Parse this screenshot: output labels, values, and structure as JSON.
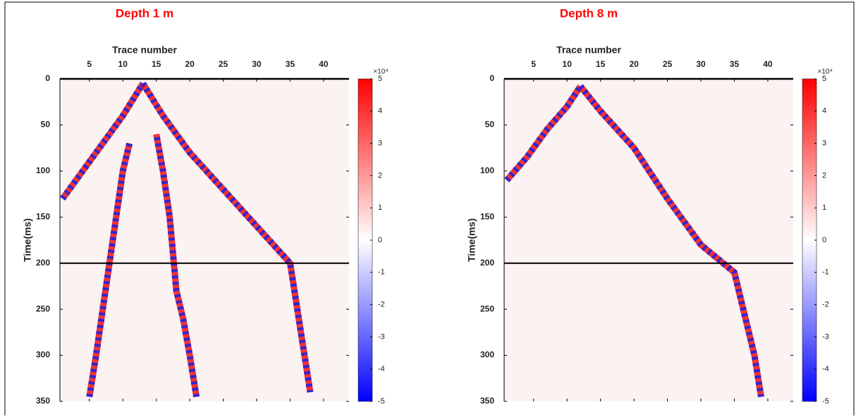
{
  "chart_data": [
    {
      "type": "heatmap",
      "title": "Depth 1 m",
      "xlabel": "Trace number",
      "ylabel": "Time(ms)",
      "xlim": [
        0.6,
        43.8
      ],
      "xticks": [
        5,
        10,
        15,
        20,
        25,
        30,
        35,
        40
      ],
      "ylim": [
        0,
        350
      ],
      "yticks": [
        0,
        50,
        100,
        150,
        200,
        250,
        300,
        350
      ],
      "clim": [
        -50000,
        50000
      ],
      "cticks": [
        {
          "value": 50000,
          "label": "5"
        },
        {
          "value": 40000,
          "label": "4"
        },
        {
          "value": 30000,
          "label": "3"
        },
        {
          "value": 20000,
          "label": "2"
        },
        {
          "value": 10000,
          "label": "1"
        },
        {
          "value": 0,
          "label": "0"
        },
        {
          "value": -10000,
          "label": "-1"
        },
        {
          "value": -20000,
          "label": "-2"
        },
        {
          "value": -30000,
          "label": "-3"
        },
        {
          "value": -40000,
          "label": "-4"
        },
        {
          "value": -50000,
          "label": "-5"
        }
      ],
      "colorbar_exponent": "×10⁴",
      "hline": 200,
      "events": [
        {
          "x": [
            1,
            4,
            7,
            10,
            13
          ],
          "y": [
            130,
            100,
            70,
            40,
            5
          ]
        },
        {
          "x": [
            13,
            16,
            20,
            25,
            30,
            35,
            38
          ],
          "y": [
            5,
            40,
            80,
            120,
            160,
            200,
            340
          ]
        },
        {
          "x": [
            5,
            6,
            7,
            8,
            9,
            10,
            11
          ],
          "y": [
            345,
            300,
            250,
            200,
            150,
            100,
            70
          ]
        },
        {
          "x": [
            21,
            20,
            19,
            18,
            17,
            16,
            15
          ],
          "y": [
            345,
            300,
            260,
            230,
            150,
            100,
            60
          ]
        }
      ]
    },
    {
      "type": "heatmap",
      "title": "Depth 8 m",
      "xlabel": "Trace number",
      "ylabel": "Time(ms)",
      "xlim": [
        0.6,
        43.8
      ],
      "xticks": [
        5,
        10,
        15,
        20,
        25,
        30,
        35,
        40
      ],
      "ylim": [
        0,
        350
      ],
      "yticks": [
        0,
        50,
        100,
        150,
        200,
        250,
        300,
        350
      ],
      "clim": [
        -50000,
        50000
      ],
      "cticks": [
        {
          "value": 50000,
          "label": "5"
        },
        {
          "value": 40000,
          "label": "4"
        },
        {
          "value": 30000,
          "label": "3"
        },
        {
          "value": 20000,
          "label": "2"
        },
        {
          "value": 10000,
          "label": "1"
        },
        {
          "value": 0,
          "label": "0"
        },
        {
          "value": -10000,
          "label": "-1"
        },
        {
          "value": -20000,
          "label": "-2"
        },
        {
          "value": -30000,
          "label": "-3"
        },
        {
          "value": -40000,
          "label": "-4"
        },
        {
          "value": -50000,
          "label": "-5"
        }
      ],
      "colorbar_exponent": "×10⁴",
      "hline": 200,
      "events": [
        {
          "x": [
            1,
            4,
            7,
            10,
            12
          ],
          "y": [
            110,
            85,
            55,
            30,
            8
          ]
        },
        {
          "x": [
            12,
            15,
            20,
            25,
            30,
            35,
            38,
            39
          ],
          "y": [
            8,
            35,
            75,
            130,
            180,
            210,
            300,
            345
          ]
        }
      ]
    }
  ]
}
